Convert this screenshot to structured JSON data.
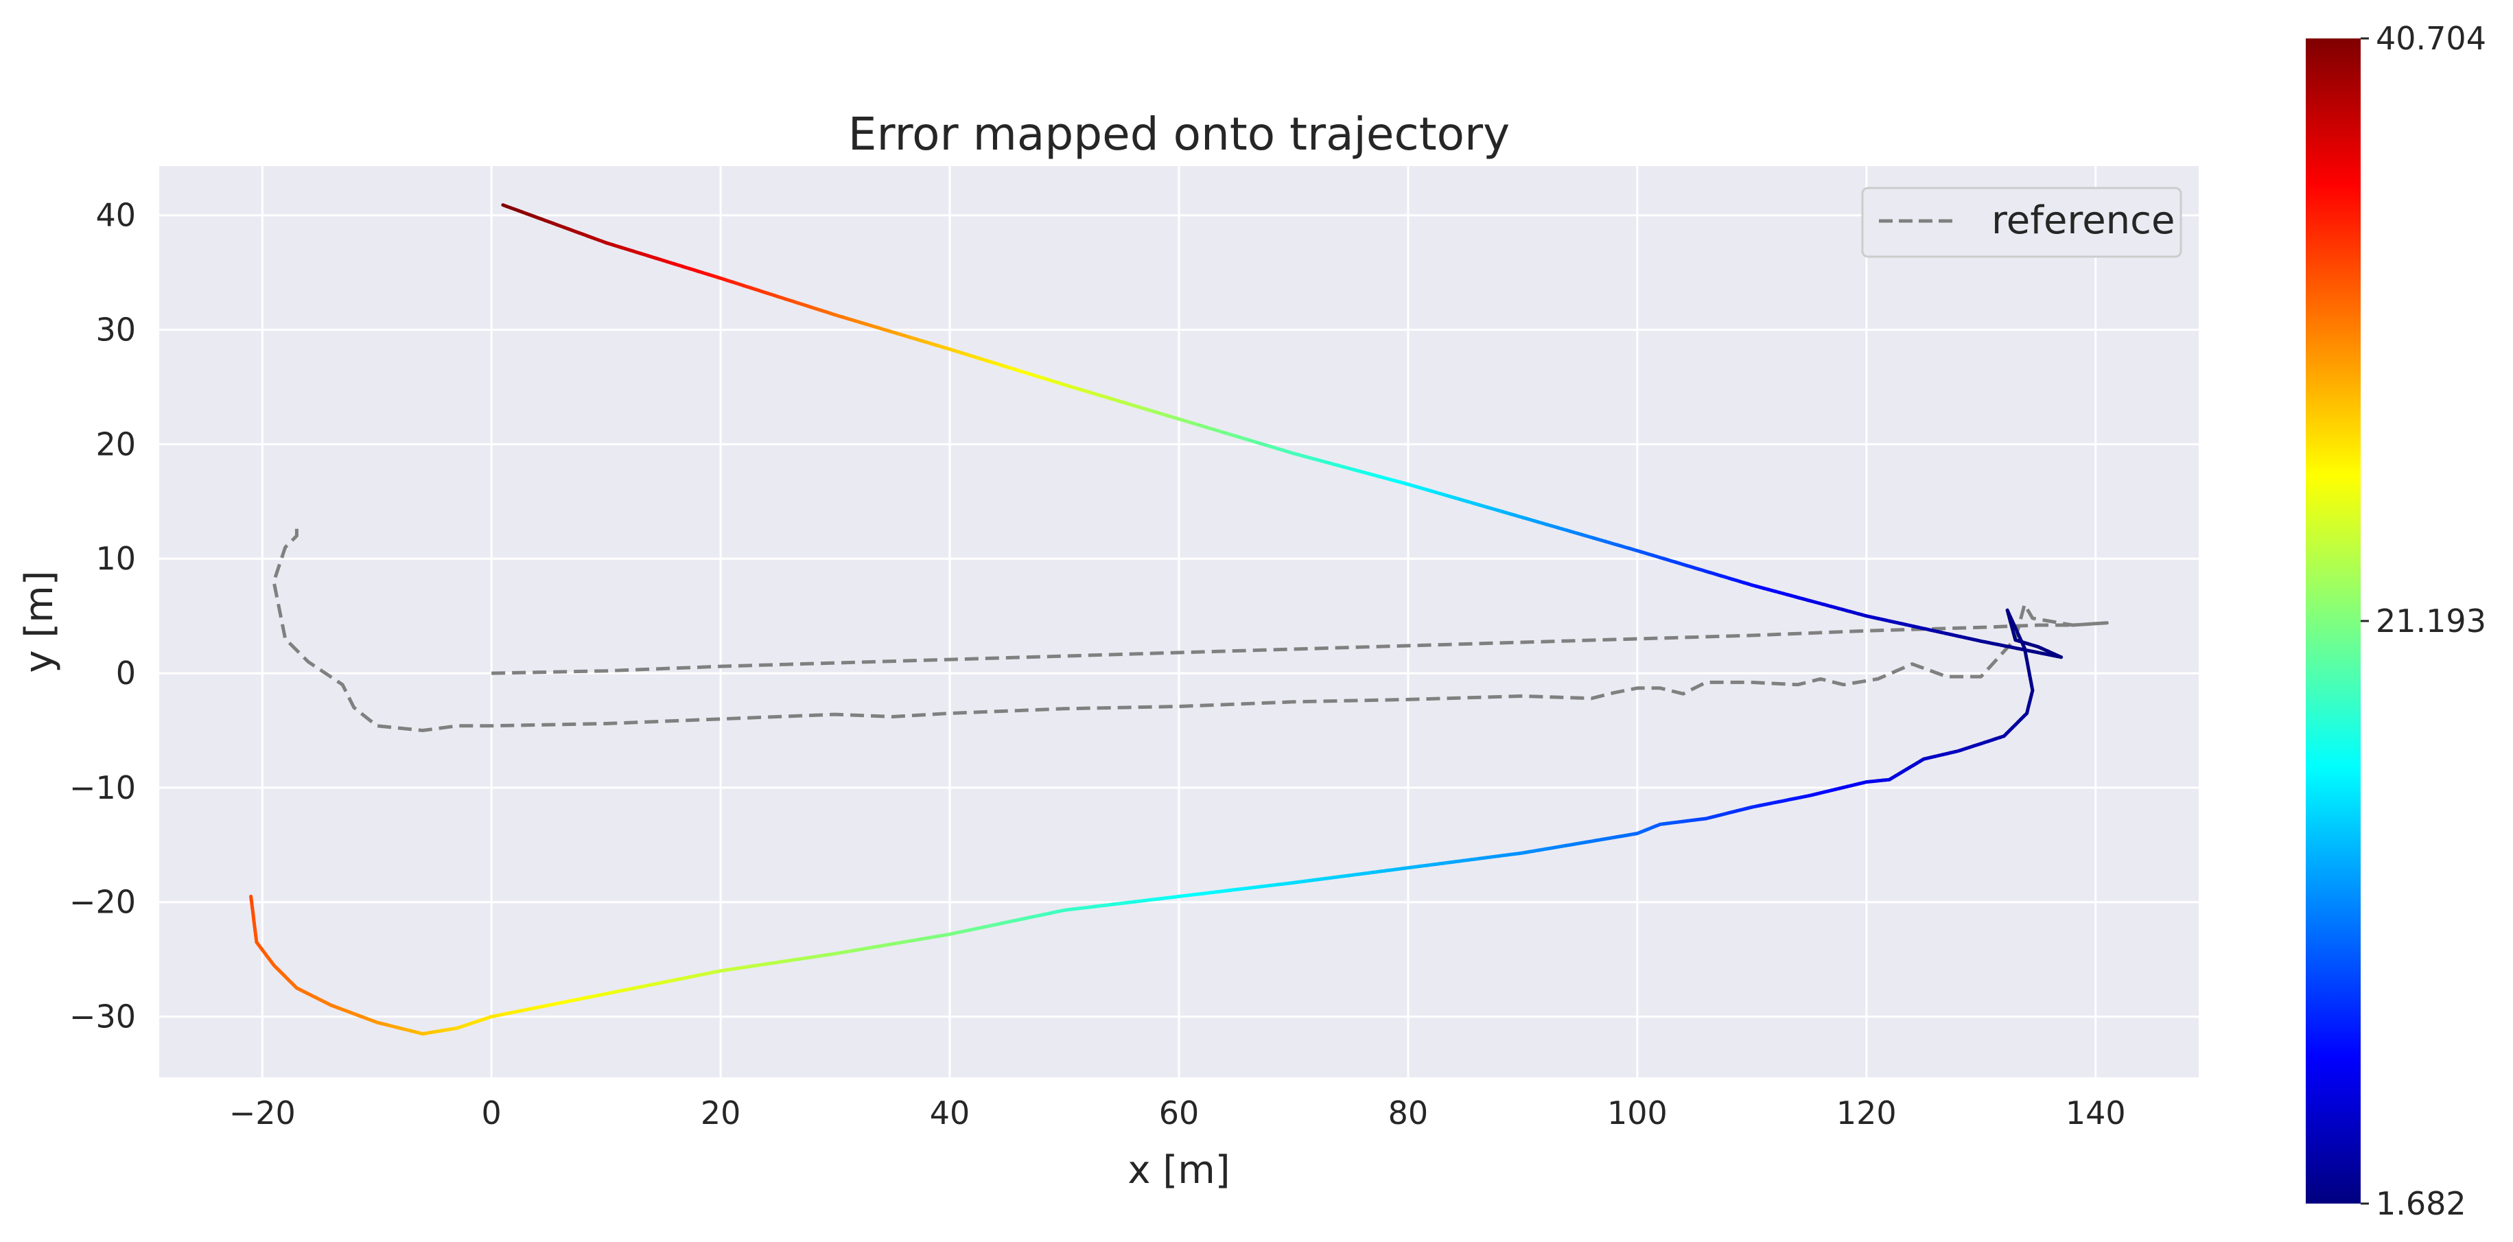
{
  "chart_data": {
    "type": "line",
    "title": "Error mapped onto trajectory",
    "xlabel": "x [m]",
    "ylabel": "y [m]",
    "xlim": [
      -29,
      149
    ],
    "ylim": [
      -35.3,
      44.3
    ],
    "xticks": [
      -20,
      0,
      20,
      40,
      60,
      80,
      100,
      120,
      140
    ],
    "yticks": [
      -30,
      -20,
      -10,
      0,
      10,
      20,
      30,
      40
    ],
    "xtick_labels": [
      "−20",
      "0",
      "20",
      "40",
      "60",
      "80",
      "100",
      "120",
      "140"
    ],
    "ytick_labels": [
      "−30",
      "−20",
      "−10",
      "0",
      "10",
      "20",
      "30",
      "40"
    ],
    "grid": true,
    "background": "#eaeaf2",
    "grid_color": "#ffffff",
    "legend": {
      "position": "top-right",
      "entries": [
        {
          "label": "reference",
          "style": "dashed",
          "color": "#808080"
        }
      ]
    },
    "colorbar": {
      "colormap": "jet",
      "min": 1.682,
      "max": 40.704,
      "tick_values": [
        1.682,
        21.193,
        40.704
      ],
      "tick_labels": [
        "1.682",
        "21.193",
        "40.704"
      ]
    },
    "series": [
      {
        "name": "reference",
        "style": "dashed",
        "color": "#808080",
        "points": [
          [
            0,
            0
          ],
          [
            10,
            0.2
          ],
          [
            20,
            0.6
          ],
          [
            30,
            0.9
          ],
          [
            40,
            1.2
          ],
          [
            50,
            1.5
          ],
          [
            60,
            1.8
          ],
          [
            70,
            2.1
          ],
          [
            80,
            2.4
          ],
          [
            90,
            2.7
          ],
          [
            100,
            3.0
          ],
          [
            110,
            3.3
          ],
          [
            120,
            3.7
          ],
          [
            130,
            4.0
          ],
          [
            135,
            4.2
          ],
          [
            138,
            4.2
          ],
          [
            141,
            4.4
          ],
          [
            138,
            4.2
          ],
          [
            134.5,
            4.8
          ],
          [
            133.8,
            6.0
          ],
          [
            133,
            3
          ],
          [
            130,
            -0.3
          ],
          [
            127,
            -0.3
          ],
          [
            124,
            0.8
          ],
          [
            121,
            -0.5
          ],
          [
            118,
            -1
          ],
          [
            116,
            -0.5
          ],
          [
            114,
            -1
          ],
          [
            110,
            -0.8
          ],
          [
            106,
            -0.8
          ],
          [
            104,
            -1.8
          ],
          [
            102,
            -1.3
          ],
          [
            100,
            -1.3
          ],
          [
            98,
            -1.7
          ],
          [
            96,
            -2.2
          ],
          [
            90,
            -2
          ],
          [
            80,
            -2.3
          ],
          [
            70,
            -2.5
          ],
          [
            60,
            -2.9
          ],
          [
            50,
            -3.1
          ],
          [
            40,
            -3.5
          ],
          [
            35,
            -3.8
          ],
          [
            30,
            -3.6
          ],
          [
            20,
            -4
          ],
          [
            10,
            -4.4
          ],
          [
            0,
            -4.6
          ],
          [
            -3,
            -4.6
          ],
          [
            -6,
            -5
          ],
          [
            -10,
            -4.6
          ],
          [
            -12,
            -3
          ],
          [
            -13,
            -1
          ],
          [
            -16,
            1
          ],
          [
            -18,
            3
          ],
          [
            -19,
            8
          ],
          [
            -18,
            11
          ],
          [
            -17,
            12
          ],
          [
            -17,
            13
          ]
        ]
      },
      {
        "name": "",
        "style": "colormapped",
        "points": [
          [
            1,
            40.9,
            40.704
          ],
          [
            10,
            37.6,
            38.5
          ],
          [
            20,
            34.5,
            35.0
          ],
          [
            30,
            31.3,
            31.5
          ],
          [
            40,
            28.3,
            28.0
          ],
          [
            50,
            25.2,
            25.0
          ],
          [
            60,
            22.2,
            22.0
          ],
          [
            70,
            19.2,
            19.0
          ],
          [
            80,
            16.5,
            16.0
          ],
          [
            90,
            13.6,
            13.0
          ],
          [
            100,
            10.7,
            10.0
          ],
          [
            110,
            7.7,
            7.0
          ],
          [
            120,
            5.0,
            4.5
          ],
          [
            130,
            2.8,
            2.5
          ],
          [
            137,
            1.4,
            1.682
          ],
          [
            135,
            2.3,
            1.8
          ],
          [
            133,
            2.9,
            1.8
          ],
          [
            132.3,
            5.5,
            1.7
          ],
          [
            133.8,
            2.2,
            1.9
          ],
          [
            134.5,
            -1.5,
            2.2
          ],
          [
            134,
            -3.5,
            2.6
          ],
          [
            132,
            -5.5,
            3.2
          ],
          [
            128,
            -6.8,
            4.0
          ],
          [
            125,
            -7.5,
            4.5
          ],
          [
            122,
            -9.3,
            5.5
          ],
          [
            120,
            -9.5,
            6.0
          ],
          [
            115,
            -10.7,
            7.0
          ],
          [
            110,
            -11.7,
            8.0
          ],
          [
            106,
            -12.7,
            9.0
          ],
          [
            102,
            -13.2,
            10.0
          ],
          [
            100,
            -14.0,
            10.5
          ],
          [
            90,
            -15.7,
            12.0
          ],
          [
            80,
            -17.0,
            13.5
          ],
          [
            70,
            -18.3,
            15.0
          ],
          [
            60,
            -19.5,
            16.5
          ],
          [
            50,
            -20.7,
            18.5
          ],
          [
            40,
            -22.8,
            21.0
          ],
          [
            30,
            -24.5,
            22.5
          ],
          [
            20,
            -26.0,
            24.0
          ],
          [
            10,
            -28.0,
            25.5
          ],
          [
            0,
            -30.0,
            27.0
          ],
          [
            -3,
            -31.0,
            27.5
          ],
          [
            -6,
            -31.5,
            28.5
          ],
          [
            -10,
            -30.5,
            30.0
          ],
          [
            -14,
            -29.0,
            31.0
          ],
          [
            -17,
            -27.5,
            31.5
          ],
          [
            -19,
            -25.5,
            32.0
          ],
          [
            -20.5,
            -23.5,
            32.5
          ],
          [
            -21,
            -19.5,
            33.0
          ]
        ]
      }
    ]
  }
}
